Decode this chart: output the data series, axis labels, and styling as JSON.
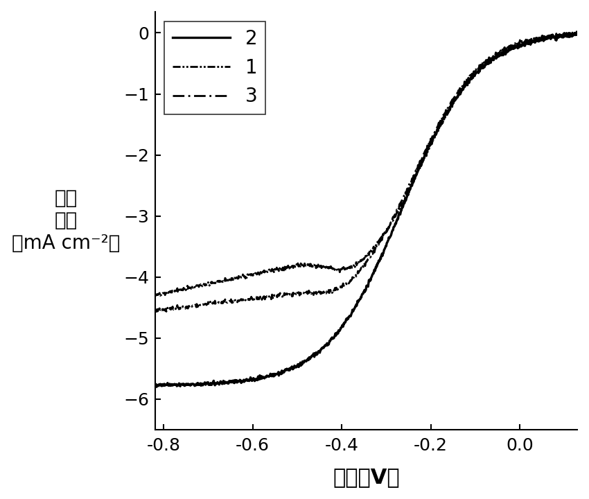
{
  "title": "",
  "xlabel": "电压（V）",
  "ylabel_line1": "电流",
  "ylabel_line2": "密度",
  "ylabel_line3": "（mA cm⁻²）",
  "xlim": [
    -0.82,
    0.13
  ],
  "ylim": [
    -6.5,
    0.35
  ],
  "xticks": [
    -0.8,
    -0.6,
    -0.4,
    -0.2,
    0.0
  ],
  "yticks": [
    0,
    -1,
    -2,
    -3,
    -4,
    -5,
    -6
  ],
  "legend_labels": [
    "2",
    "1",
    "3"
  ],
  "background_color": "#ffffff",
  "line_color": "#000000",
  "xlabel_fontsize": 22,
  "ylabel_fontsize": 20,
  "tick_fontsize": 18,
  "legend_fontsize": 20
}
